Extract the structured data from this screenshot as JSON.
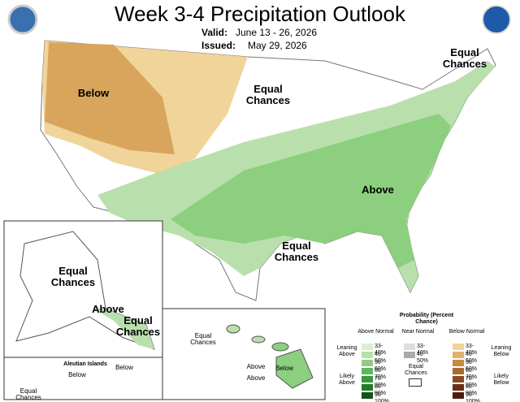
{
  "header": {
    "title": "Week 3-4 Precipitation Outlook",
    "valid_label": "Valid:",
    "valid": "June 13 - 26, 2026",
    "issued_label": "Issued:",
    "issued": "May 29, 2026"
  },
  "map": {
    "labels": [
      "Below",
      "Equal Chances",
      "Equal Chances",
      "Above",
      "Equal Chances"
    ]
  },
  "alaska": {
    "labels": [
      "Equal Chances",
      "Above",
      "Equal Chances"
    ]
  },
  "aleutians": {
    "title": "Aleutian Islands",
    "labels": [
      "Below",
      "Below",
      "Equal Chances"
    ]
  },
  "hawaii": {
    "labels": [
      "Equal Chances",
      "Above",
      "Below",
      "Above"
    ]
  },
  "legend": {
    "title": "Probability (Percent Chance)",
    "columns": [
      {
        "name": "Above Normal",
        "rows": [
          "33-40%",
          "40-50%",
          "50-60%",
          "60-70%",
          "70-80%",
          "80-90%",
          "90-100%"
        ]
      },
      {
        "name": "Near Normal",
        "rows": [
          "33-40%",
          "40-50%"
        ]
      },
      {
        "name": "Below Normal",
        "rows": [
          "33-40%",
          "40-50%",
          "50-60%",
          "60-70%",
          "70-80%",
          "80-90%",
          "90-100%"
        ]
      }
    ],
    "equal": "Equal Chances",
    "side": [
      "Leaning Above",
      "Likely Above",
      "Leaning Below",
      "Likely Below"
    ]
  }
}
